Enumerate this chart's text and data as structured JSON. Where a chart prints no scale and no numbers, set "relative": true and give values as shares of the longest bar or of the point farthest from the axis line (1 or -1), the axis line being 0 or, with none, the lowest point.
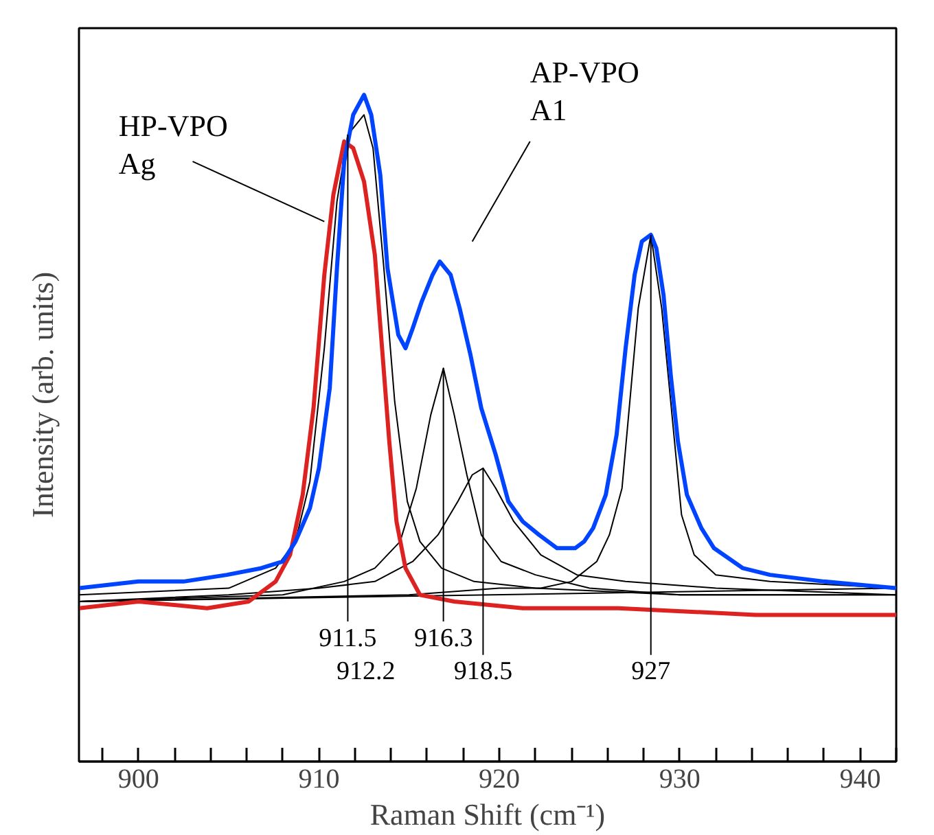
{
  "chart_data": {
    "type": "line",
    "relative": true,
    "xlabel": "Raman Shift (cm⁻¹)",
    "ylabel": "Intensity (arb. units)",
    "xlim": [
      896.7,
      942.0
    ],
    "xticks": [
      {
        "value": 898,
        "label": null
      },
      900,
      {
        "value": 902,
        "label": null
      },
      {
        "value": 904,
        "label": null
      },
      {
        "value": 906,
        "label": null
      },
      {
        "value": 908,
        "label": null
      },
      910,
      {
        "value": 912,
        "label": null
      },
      {
        "value": 914,
        "label": null
      },
      {
        "value": 916,
        "label": null
      },
      {
        "value": 918,
        "label": null
      },
      920,
      {
        "value": 922,
        "label": null
      },
      {
        "value": 924,
        "label": null
      },
      {
        "value": 926,
        "label": null
      },
      {
        "value": 928,
        "label": null
      },
      930,
      {
        "value": 932,
        "label": null
      },
      {
        "value": 934,
        "label": null
      },
      {
        "value": 936,
        "label": null
      },
      {
        "value": 938,
        "label": null
      },
      940,
      {
        "value": 942,
        "label": null
      }
    ],
    "grid": false,
    "line_style": "solid",
    "marker": "none",
    "series": [
      {
        "color": "#000000",
        "x": [
          896.7,
          942.0
        ],
        "values": [
          0.24,
          0.26
        ]
      },
      {
        "color": "#000000",
        "x": [
          896.7,
          905,
          907.6,
          908.7,
          909.5,
          910.3,
          911.0,
          911.6,
          912.5,
          913.0,
          913.6,
          914.2,
          914.9,
          915.6,
          916.8,
          918.6,
          922,
          930,
          942
        ],
        "values": [
          0.25,
          0.26,
          0.29,
          0.33,
          0.42,
          0.62,
          0.84,
          0.94,
          0.97,
          0.92,
          0.74,
          0.54,
          0.39,
          0.33,
          0.29,
          0.27,
          0.26,
          0.25,
          0.25
        ]
      },
      {
        "color": "#000000",
        "x": [
          896.7,
          908,
          911.4,
          913.1,
          914.5,
          915.4,
          916.2,
          916.9,
          917.5,
          918.2,
          919.0,
          920.1,
          922,
          925,
          930,
          942
        ],
        "values": [
          0.24,
          0.25,
          0.27,
          0.29,
          0.33,
          0.41,
          0.52,
          0.59,
          0.52,
          0.43,
          0.34,
          0.3,
          0.28,
          0.26,
          0.25,
          0.25
        ]
      },
      {
        "color": "#000000",
        "x": [
          896.7,
          905,
          910,
          913.1,
          915.2,
          916.6,
          917.7,
          918.5,
          919.1,
          919.8,
          920.8,
          922.3,
          924.3,
          927,
          932,
          942
        ],
        "values": [
          0.24,
          0.25,
          0.26,
          0.27,
          0.3,
          0.34,
          0.39,
          0.43,
          0.44,
          0.41,
          0.36,
          0.31,
          0.28,
          0.27,
          0.26,
          0.25
        ]
      },
      {
        "color": "#000000",
        "x": [
          896.7,
          915,
          920,
          922.3,
          924,
          925.4,
          926.1,
          926.8,
          927.3,
          927.7,
          928.4,
          929.0,
          929.5,
          930.1,
          930.8,
          932,
          935,
          942
        ],
        "values": [
          0.24,
          0.25,
          0.26,
          0.26,
          0.27,
          0.3,
          0.34,
          0.41,
          0.56,
          0.68,
          0.79,
          0.68,
          0.54,
          0.37,
          0.31,
          0.28,
          0.27,
          0.26
        ]
      },
      {
        "color": "#dd2222",
        "x": [
          896.7,
          900.0,
          903.8,
          906.1,
          907.6,
          908.4,
          909.1,
          909.7,
          910.3,
          910.8,
          911.4,
          911.9,
          912.5,
          913.1,
          913.5,
          913.9,
          914.3,
          914.8,
          915.6,
          917.5,
          921.3,
          926.6,
          934.2,
          942.0
        ],
        "values": [
          0.23,
          0.24,
          0.23,
          0.24,
          0.27,
          0.31,
          0.4,
          0.53,
          0.73,
          0.85,
          0.93,
          0.92,
          0.87,
          0.76,
          0.62,
          0.48,
          0.36,
          0.29,
          0.25,
          0.24,
          0.23,
          0.23,
          0.22,
          0.22
        ]
      },
      {
        "color": "#0044ff",
        "x": [
          896.7,
          900.0,
          902.5,
          904.9,
          906.8,
          908.0,
          908.7,
          909.5,
          910.0,
          910.6,
          911.0,
          911.4,
          911.9,
          912.5,
          912.9,
          913.4,
          913.8,
          914.4,
          914.8,
          915.2,
          915.7,
          916.3,
          916.7,
          917.3,
          917.8,
          918.4,
          919.0,
          919.8,
          920.5,
          921.3,
          922.2,
          923.2,
          924.2,
          924.7,
          925.2,
          925.9,
          926.5,
          927.0,
          927.5,
          927.9,
          928.4,
          928.7,
          929.1,
          929.5,
          929.9,
          930.4,
          931.2,
          931.9,
          933.5,
          935.0,
          938.0,
          942.0
        ],
        "values": [
          0.26,
          0.27,
          0.27,
          0.28,
          0.29,
          0.3,
          0.33,
          0.38,
          0.44,
          0.56,
          0.74,
          0.9,
          0.97,
          1.0,
          0.97,
          0.88,
          0.74,
          0.64,
          0.62,
          0.65,
          0.69,
          0.73,
          0.75,
          0.73,
          0.68,
          0.61,
          0.53,
          0.46,
          0.39,
          0.36,
          0.34,
          0.32,
          0.32,
          0.33,
          0.35,
          0.4,
          0.49,
          0.62,
          0.73,
          0.78,
          0.79,
          0.77,
          0.7,
          0.58,
          0.48,
          0.4,
          0.35,
          0.32,
          0.29,
          0.28,
          0.27,
          0.26
        ]
      }
    ],
    "annotations": [
      "HP-VPO\nAg",
      "AP-VPO\nA1",
      "911.5",
      "912.2",
      "916.3",
      "918.5",
      "927"
    ]
  }
}
